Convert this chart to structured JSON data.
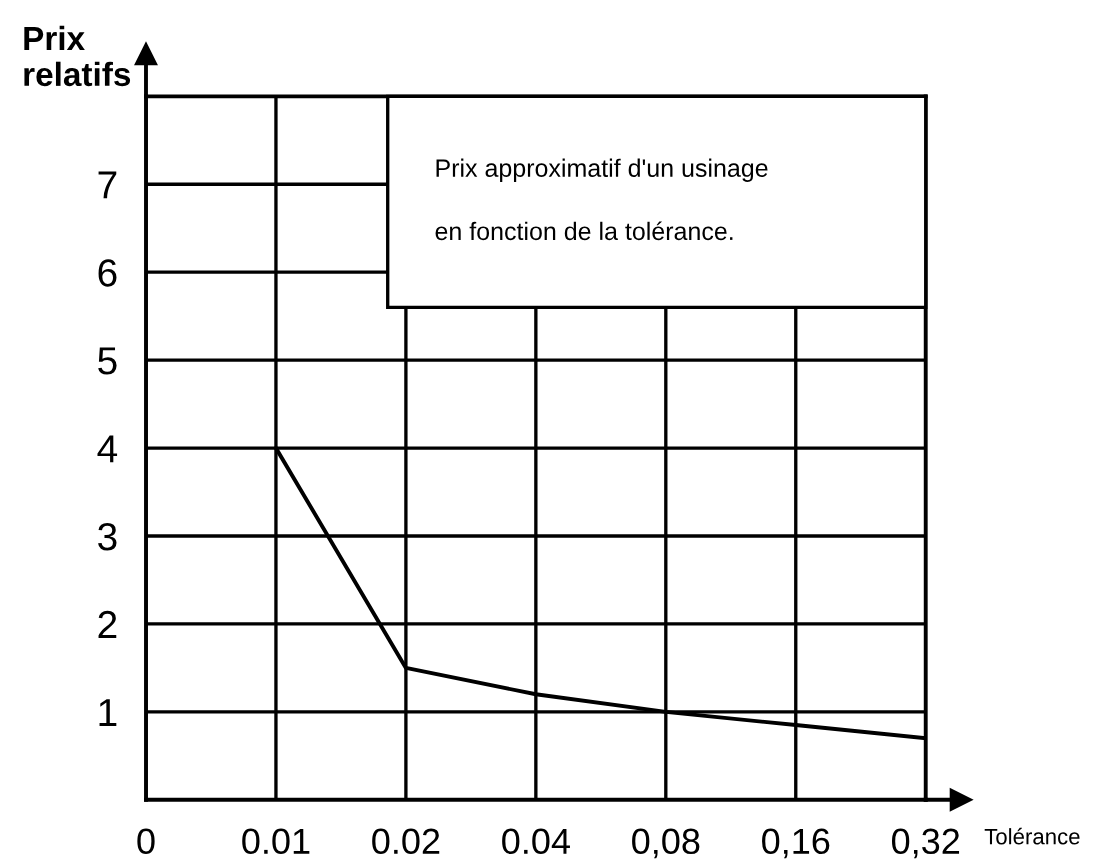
{
  "chart_data": {
    "type": "line",
    "title": "Prix approximatif d'un usinage\nen fonction de la tolérance.",
    "xlabel": "Tolérance",
    "ylabel": "Prix\nrelatifs",
    "categories": [
      "0",
      "0.01",
      "0.02",
      "0.04",
      "0,08",
      "0,16",
      "0,32"
    ],
    "series": [
      {
        "color": "#000000",
        "values": [
          null,
          4.0,
          1.5,
          1.2,
          1.0,
          0.85,
          0.7
        ]
      }
    ],
    "ylim": [
      0,
      8
    ],
    "yticks": [
      {
        "value": 0,
        "label": null
      },
      1,
      2,
      3,
      4,
      5,
      6,
      7,
      {
        "value": 8,
        "label": null
      }
    ],
    "grid": true,
    "marker": "none",
    "line_style": "solid",
    "legend": false
  }
}
